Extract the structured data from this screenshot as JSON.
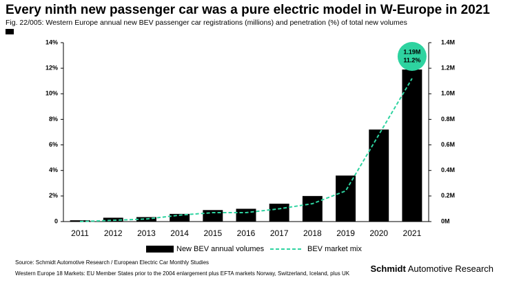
{
  "chart_data": {
    "type": "bar",
    "title": "Every ninth new passenger car was a pure electric model in W-Europe in 2021",
    "subtitle": "Fig. 22/005: Western Europe annual new BEV passenger car registrations (millions) and penetration (%) of total new volumes",
    "categories": [
      "2011",
      "2012",
      "2013",
      "2014",
      "2015",
      "2016",
      "2017",
      "2018",
      "2019",
      "2020",
      "2021"
    ],
    "series": [
      {
        "name": "New BEV annual volumes",
        "type": "bar",
        "axis": "y2",
        "color": "#000000",
        "values": [
          0.01,
          0.03,
          0.035,
          0.06,
          0.09,
          0.1,
          0.14,
          0.2,
          0.36,
          0.72,
          1.19
        ],
        "value_labels": [
          null,
          null,
          null,
          null,
          null,
          null,
          null,
          null,
          null,
          null,
          "1.19M"
        ]
      },
      {
        "name": "BEV market mix",
        "type": "line",
        "color": "#2ed3a0",
        "values": [
          0.0,
          0.1,
          0.2,
          0.5,
          0.7,
          0.7,
          1.0,
          1.4,
          2.4,
          6.8,
          11.2
        ],
        "value_labels": [
          null,
          null,
          null,
          null,
          null,
          null,
          null,
          null,
          null,
          null,
          "11.2%"
        ]
      }
    ],
    "ylim": [
      0,
      14
    ],
    "yticks": [
      0,
      {
        "value": 2,
        "label": "2%"
      },
      {
        "value": 4,
        "label": "4%"
      },
      {
        "value": 6,
        "label": "6%"
      },
      {
        "value": 8,
        "label": "8%"
      },
      {
        "value": 10,
        "label": "10%"
      },
      {
        "value": 12,
        "label": "12%"
      },
      {
        "value": 14,
        "label": "14%"
      }
    ],
    "y2lim": [
      0,
      1.4
    ],
    "y2ticks": [
      {
        "value": 0,
        "label": "0M"
      },
      {
        "value": 0.2,
        "label": "0.2M"
      },
      {
        "value": 0.4,
        "label": "0.4M"
      },
      {
        "value": 0.6,
        "label": "0.6M"
      },
      {
        "value": 0.8,
        "label": "0.8M"
      },
      {
        "value": 1.0,
        "label": "1.0M"
      },
      {
        "value": 1.2,
        "label": "1.2M"
      },
      {
        "value": 1.4,
        "label": "1.4M"
      }
    ],
    "grid": false,
    "legend": "bottom"
  },
  "footer": {
    "source": "Source: Schmidt Automotive Research / European Electric Car Monthly Studies",
    "note": "Western Europe 18 Markets: EU Member States prior to the 2004 enlargement plus EFTA markets Norway, Switzerland, Iceland, plus UK",
    "brand_bold": "Schmidt",
    "brand_rest": "Automotive Research"
  }
}
